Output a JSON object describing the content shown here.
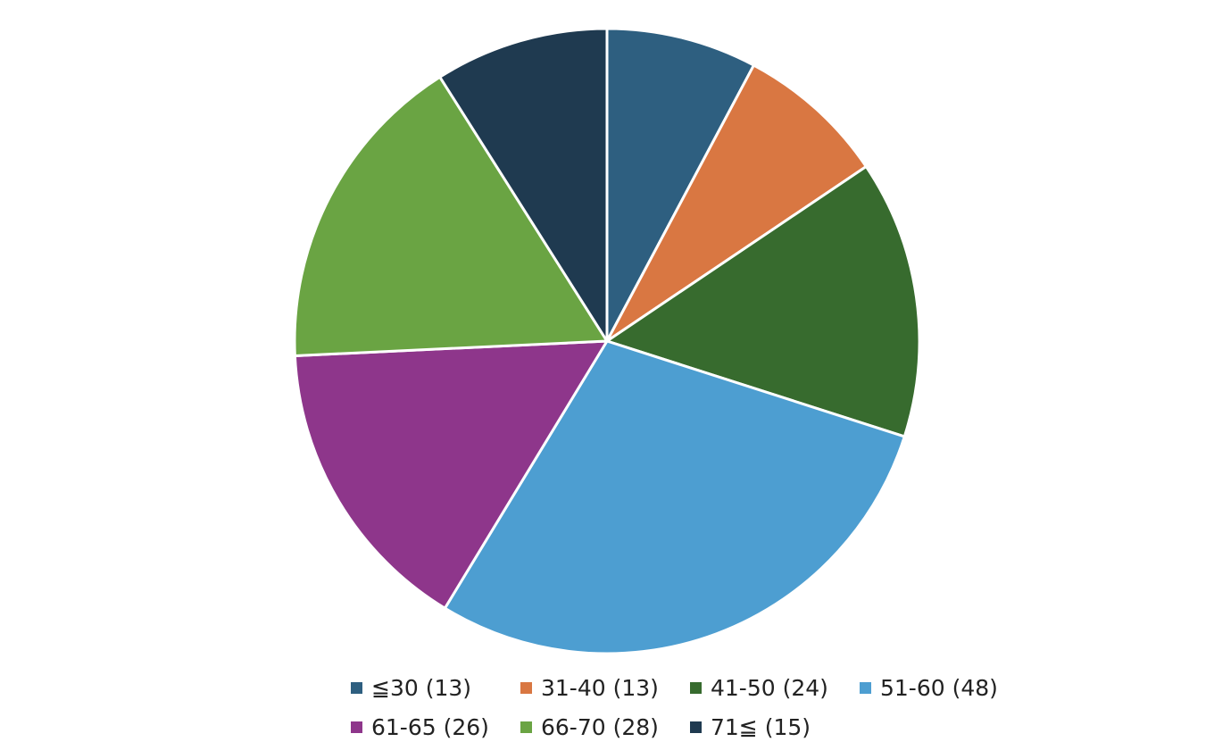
{
  "chart_data": {
    "type": "pie",
    "start_angle_deg": 0,
    "direction": "clockwise",
    "slice_border_color": "#ffffff",
    "legend_position": "bottom",
    "slices": [
      {
        "label": "≦30 (13)",
        "value": 13,
        "color": "#2e5f80"
      },
      {
        "label": "31-40 (13)",
        "value": 13,
        "color": "#d97742"
      },
      {
        "label": "41-50 (24)",
        "value": 24,
        "color": "#376b2e"
      },
      {
        "label": "51-60 (48)",
        "value": 48,
        "color": "#4d9ed1"
      },
      {
        "label": "61-65 (26)",
        "value": 26,
        "color": "#8e368b"
      },
      {
        "label": "66-70 (28)",
        "value": 28,
        "color": "#6aa443"
      },
      {
        "label": "71≦ (15)",
        "value": 15,
        "color": "#1f3a50"
      }
    ]
  }
}
